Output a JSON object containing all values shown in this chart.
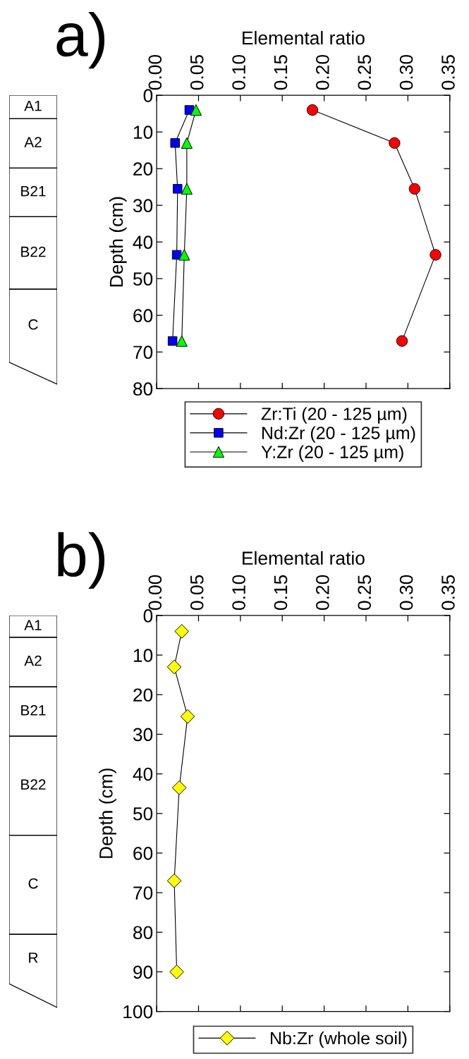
{
  "chart_data": [
    {
      "type": "line",
      "title": "a)",
      "xlabel": "Elemental ratio",
      "ylabel": "Depth (cm)",
      "xlim": [
        0,
        0.35
      ],
      "xticks": [
        {
          "value": 0,
          "label": "0.00"
        },
        {
          "value": 0.05,
          "label": "0.05"
        },
        {
          "value": 0.1,
          "label": "0.10"
        },
        {
          "value": 0.15,
          "label": "0.15"
        },
        {
          "value": 0.2,
          "label": "0.20"
        },
        {
          "value": 0.25,
          "label": "0.25"
        },
        {
          "value": 0.3,
          "label": "0.30"
        },
        {
          "value": 0.35,
          "label": "0.35"
        }
      ],
      "ylim": [
        80,
        0
      ],
      "yticks": [
        0,
        10,
        20,
        30,
        40,
        50,
        60,
        70,
        80
      ],
      "grid": false,
      "legend": "bottom",
      "line_style": "solid",
      "series": [
        {
          "name": "Zr:Ti (20 - 125 µm)",
          "color": "#ff0000",
          "marker": "circle",
          "x": [
            0.186,
            0.284,
            0.308,
            0.333,
            0.293
          ],
          "values": [
            4,
            13,
            25.5,
            43.5,
            67
          ]
        },
        {
          "name": "Nd:Zr (20 - 125 µm)",
          "color": "#0000ff",
          "marker": "square",
          "x": [
            0.039,
            0.022,
            0.025,
            0.024,
            0.019
          ],
          "values": [
            4,
            13,
            25.5,
            43.5,
            67
          ]
        },
        {
          "name": "Y:Zr (20 - 125 µm)",
          "color": "#00ff00",
          "marker": "triangle",
          "x": [
            0.047,
            0.036,
            0.036,
            0.033,
            0.03
          ],
          "values": [
            4,
            13,
            25.5,
            43.5,
            67
          ]
        }
      ],
      "annotations": [
        "A1",
        "A2",
        "B21",
        "B22",
        "C"
      ]
    },
    {
      "type": "line",
      "title": "b)",
      "xlabel": "Elemental ratio",
      "ylabel": "Depth (cm)",
      "xlim": [
        0,
        0.35
      ],
      "xticks": [
        {
          "value": 0,
          "label": "0.00"
        },
        {
          "value": 0.05,
          "label": "0.05"
        },
        {
          "value": 0.1,
          "label": "0.10"
        },
        {
          "value": 0.15,
          "label": "0.15"
        },
        {
          "value": 0.2,
          "label": "0.20"
        },
        {
          "value": 0.25,
          "label": "0.25"
        },
        {
          "value": 0.3,
          "label": "0.30"
        },
        {
          "value": 0.35,
          "label": "0.35"
        }
      ],
      "ylim": [
        100,
        0
      ],
      "yticks": [
        0,
        10,
        20,
        30,
        40,
        50,
        60,
        70,
        80,
        90,
        100
      ],
      "grid": false,
      "legend": "bottom",
      "line_style": "solid",
      "series": [
        {
          "name": "Nb:Zr (whole soil)",
          "color": "#ffff00",
          "marker": "diamond",
          "x": [
            0.03,
            0.021,
            0.037,
            0.027,
            0.021,
            0.024
          ],
          "values": [
            4,
            13,
            25.5,
            43.5,
            67,
            90
          ]
        }
      ],
      "annotations": [
        "A1",
        "A2",
        "B21",
        "B22",
        "C",
        "R"
      ]
    }
  ]
}
